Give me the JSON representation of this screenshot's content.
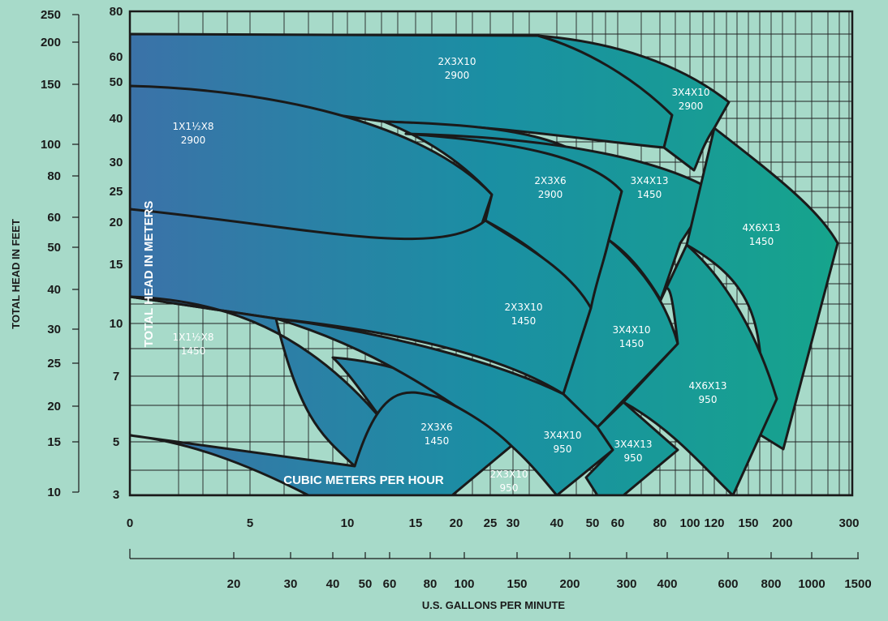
{
  "colors": {
    "background": "#a7dac9",
    "fill_left": "#3b72a8",
    "fill_mid": "#1a8fa3",
    "fill_right": "#16a58b",
    "outline": "#1a1a1a",
    "grid": "#222222",
    "label": "#ffffff"
  },
  "chart_data": {
    "type": "area",
    "title": "",
    "axes": {
      "x_bottom": {
        "label": "U.S. GALLONS PER MINUTE",
        "scale": "log",
        "ticks": [
          "20",
          "30",
          "40",
          "50",
          "60",
          "80",
          "100",
          "150",
          "200",
          "300",
          "400",
          "600",
          "800",
          "1000",
          "1500"
        ]
      },
      "x_top": {
        "label": "CUBIC METERS PER HOUR",
        "scale": "log",
        "ticks": [
          "0",
          "5",
          "10",
          "15",
          "20",
          "25",
          "30",
          "40",
          "50",
          "60",
          "80",
          "100",
          "120",
          "150",
          "200",
          "300"
        ]
      },
      "y_left": {
        "label": "TOTAL HEAD IN FEET",
        "scale": "log",
        "ticks": [
          "250",
          "200",
          "150",
          "100",
          "80",
          "60",
          "50",
          "40",
          "30",
          "25",
          "20",
          "15",
          "10"
        ]
      },
      "y_inner": {
        "label": "TOTAL HEAD IN METERS",
        "scale": "log",
        "ticks": [
          "80",
          "60",
          "50",
          "40",
          "30",
          "25",
          "20",
          "15",
          "10",
          "7",
          "5",
          "3"
        ]
      }
    },
    "grid": true,
    "regions": [
      {
        "label": "2X3X10",
        "rpm": "2900"
      },
      {
        "label": "3X4X10",
        "rpm": "2900"
      },
      {
        "label": "1X1½X8",
        "rpm": "2900"
      },
      {
        "label": "2X3X6",
        "rpm": "2900"
      },
      {
        "label": "3X4X13",
        "rpm": "1450"
      },
      {
        "label": "4X6X13",
        "rpm": "1450"
      },
      {
        "label": "2X3X10",
        "rpm": "1450"
      },
      {
        "label": "3X4X10",
        "rpm": "1450"
      },
      {
        "label": "1X1½X8",
        "rpm": "1450"
      },
      {
        "label": "4X6X13",
        "rpm": "950"
      },
      {
        "label": "2X3X6",
        "rpm": "1450"
      },
      {
        "label": "3X4X10",
        "rpm": "950"
      },
      {
        "label": "3X4X13",
        "rpm": "950"
      },
      {
        "label": "2X3X10",
        "rpm": "950"
      }
    ]
  }
}
